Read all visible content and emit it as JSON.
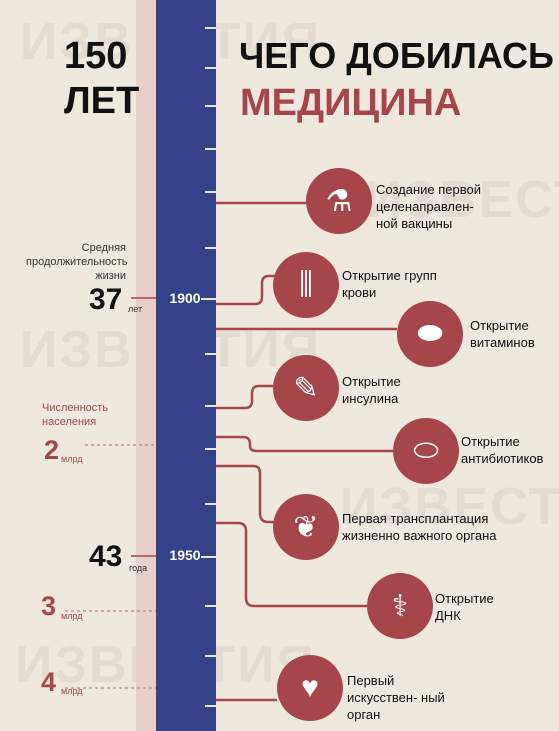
{
  "title": {
    "number": "150",
    "years": "ЛЕТ",
    "main": "ЧЕГО ДОБИЛАСЬ",
    "sub": "МЕДИЦИНА"
  },
  "labels": {
    "life_expectancy_label": "Средняя продолжительность жизни",
    "population_label": "Численность населения",
    "life_1900": "37",
    "life_1900_unit": "лет",
    "life_1950": "43",
    "life_1950_unit": "года",
    "pop_2": "2",
    "pop_3": "3",
    "pop_4": "4",
    "pop_unit": "млрд"
  },
  "years": {
    "y1900": "1900",
    "y1950": "1950"
  },
  "events": [
    {
      "text": "Создание первой целенаправлен- ной вакцины",
      "icon": "vaccine-bottle-icon"
    },
    {
      "text": "Открытие групп крови",
      "icon": "blood-tubes-icon"
    },
    {
      "text": "Открытие витаминов",
      "icon": "vitamins-icon"
    },
    {
      "text": "Открытие инсулина",
      "icon": "syringe-icon"
    },
    {
      "text": "Открытие антибиотиков",
      "icon": "capsule-icon"
    },
    {
      "text": "Первая трансплантация жизненно важного органа",
      "icon": "kidney-icon"
    },
    {
      "text": "Открытие ДНК",
      "icon": "dna-icon"
    },
    {
      "text": "Первый искусствен- ный орган",
      "icon": "organ-icon"
    }
  ],
  "watermark": "ИЗВЕСТИЯ",
  "colors": {
    "accent": "#a6464b",
    "timeline": "#34428a",
    "background": "#efe8df"
  }
}
